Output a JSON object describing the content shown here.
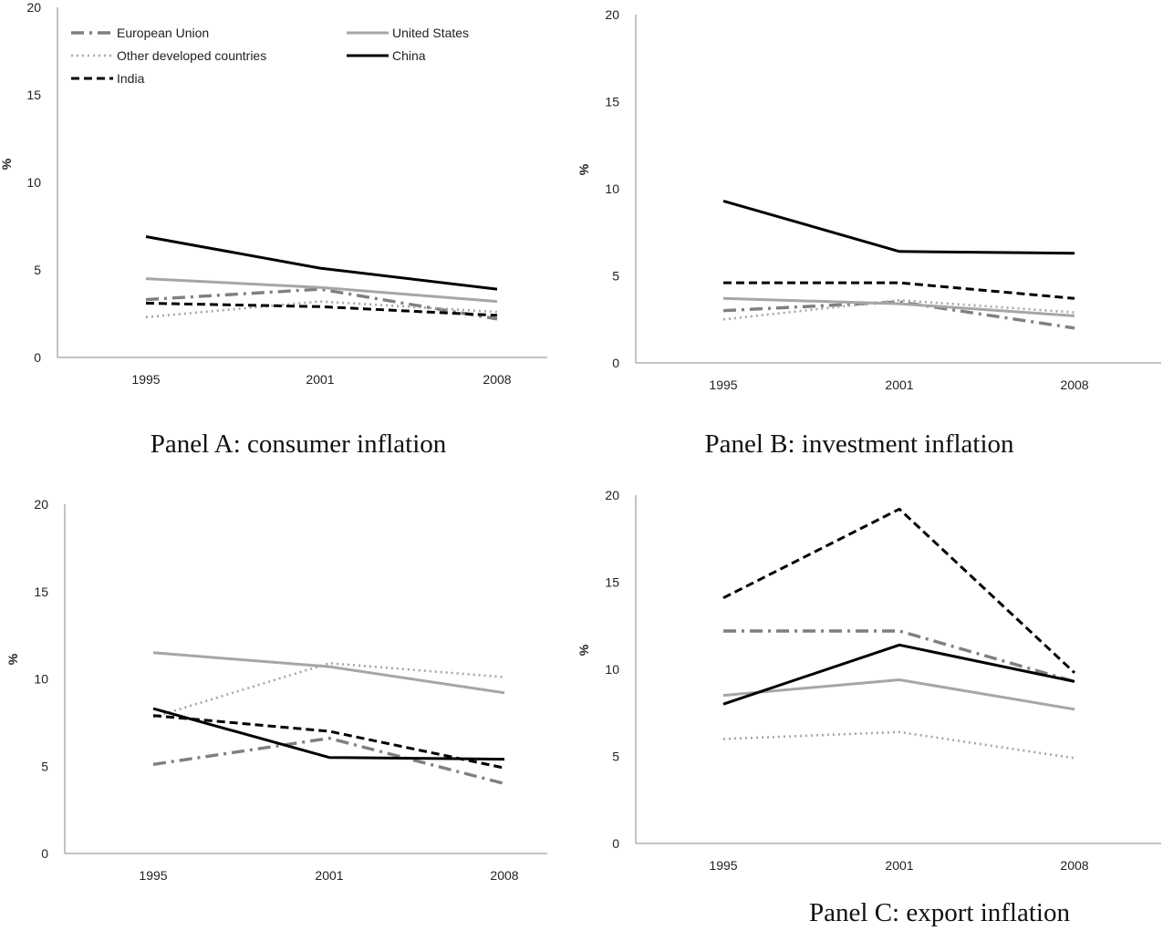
{
  "chart_data": [
    {
      "type": "line",
      "caption": "Panel A: consumer inflation",
      "ylabel": "%",
      "ylim": [
        0,
        20
      ],
      "yticks": [
        0,
        5,
        10,
        15,
        20
      ],
      "categories": [
        "1995",
        "2001",
        "2008"
      ],
      "legend": "top-left",
      "grid": false,
      "series": [
        {
          "name": "European Union",
          "values": [
            3.3,
            3.9,
            2.2
          ],
          "color": "#7f7f7f",
          "style": "dashdot"
        },
        {
          "name": "United States",
          "values": [
            4.5,
            4.0,
            3.2
          ],
          "color": "#a6a6a6",
          "style": "solid"
        },
        {
          "name": "Other developed countries",
          "values": [
            2.3,
            3.2,
            2.6
          ],
          "color": "#a6a6a6",
          "style": "dotted"
        },
        {
          "name": "China",
          "values": [
            6.9,
            5.1,
            3.9
          ],
          "color": "#000000",
          "style": "solid"
        },
        {
          "name": "India",
          "values": [
            3.1,
            2.9,
            2.4
          ],
          "color": "#000000",
          "style": "dashed"
        }
      ]
    },
    {
      "type": "line",
      "caption": "Panel B: investment inflation",
      "ylabel": "%",
      "ylim": [
        0,
        20
      ],
      "yticks": [
        0,
        5,
        10,
        15,
        20
      ],
      "categories": [
        "1995",
        "2001",
        "2008"
      ],
      "grid": false,
      "series": [
        {
          "name": "European Union",
          "values": [
            3.0,
            3.5,
            2.0
          ],
          "color": "#7f7f7f",
          "style": "dashdot"
        },
        {
          "name": "United States",
          "values": [
            3.7,
            3.4,
            2.7
          ],
          "color": "#a6a6a6",
          "style": "solid"
        },
        {
          "name": "Other developed countries",
          "values": [
            2.5,
            3.6,
            2.9
          ],
          "color": "#a6a6a6",
          "style": "dotted"
        },
        {
          "name": "China",
          "values": [
            9.3,
            6.4,
            6.3
          ],
          "color": "#000000",
          "style": "solid"
        },
        {
          "name": "India",
          "values": [
            4.6,
            4.6,
            3.7
          ],
          "color": "#000000",
          "style": "dashed"
        }
      ]
    },
    {
      "type": "line",
      "caption": "",
      "ylabel": "%",
      "ylim": [
        0,
        20
      ],
      "yticks": [
        0,
        5,
        10,
        15,
        20
      ],
      "categories": [
        "1995",
        "2001",
        "2008"
      ],
      "grid": false,
      "series": [
        {
          "name": "European Union",
          "values": [
            5.1,
            6.6,
            4.0
          ],
          "color": "#7f7f7f",
          "style": "dashdot"
        },
        {
          "name": "United States",
          "values": [
            11.5,
            10.7,
            9.2
          ],
          "color": "#a6a6a6",
          "style": "solid"
        },
        {
          "name": "Other developed countries",
          "values": [
            7.8,
            10.9,
            10.1
          ],
          "color": "#a6a6a6",
          "style": "dotted"
        },
        {
          "name": "China",
          "values": [
            8.3,
            5.5,
            5.4
          ],
          "color": "#000000",
          "style": "solid"
        },
        {
          "name": "India",
          "values": [
            7.9,
            7.0,
            4.9
          ],
          "color": "#000000",
          "style": "dashed"
        }
      ]
    },
    {
      "type": "line",
      "caption": "Panel C: export inflation",
      "ylabel": "%",
      "ylim": [
        0,
        20
      ],
      "yticks": [
        0,
        5,
        10,
        15,
        20
      ],
      "categories": [
        "1995",
        "2001",
        "2008"
      ],
      "grid": false,
      "series": [
        {
          "name": "European Union",
          "values": [
            12.2,
            12.2,
            9.3
          ],
          "color": "#7f7f7f",
          "style": "dashdot"
        },
        {
          "name": "United States",
          "values": [
            8.5,
            9.4,
            7.7
          ],
          "color": "#a6a6a6",
          "style": "solid"
        },
        {
          "name": "Other developed countries",
          "values": [
            6.0,
            6.4,
            4.9
          ],
          "color": "#a6a6a6",
          "style": "dotted"
        },
        {
          "name": "China",
          "values": [
            8.0,
            11.4,
            9.3
          ],
          "color": "#000000",
          "style": "solid"
        },
        {
          "name": "India",
          "values": [
            14.1,
            19.2,
            9.8
          ],
          "color": "#000000",
          "style": "dashed"
        }
      ]
    }
  ]
}
